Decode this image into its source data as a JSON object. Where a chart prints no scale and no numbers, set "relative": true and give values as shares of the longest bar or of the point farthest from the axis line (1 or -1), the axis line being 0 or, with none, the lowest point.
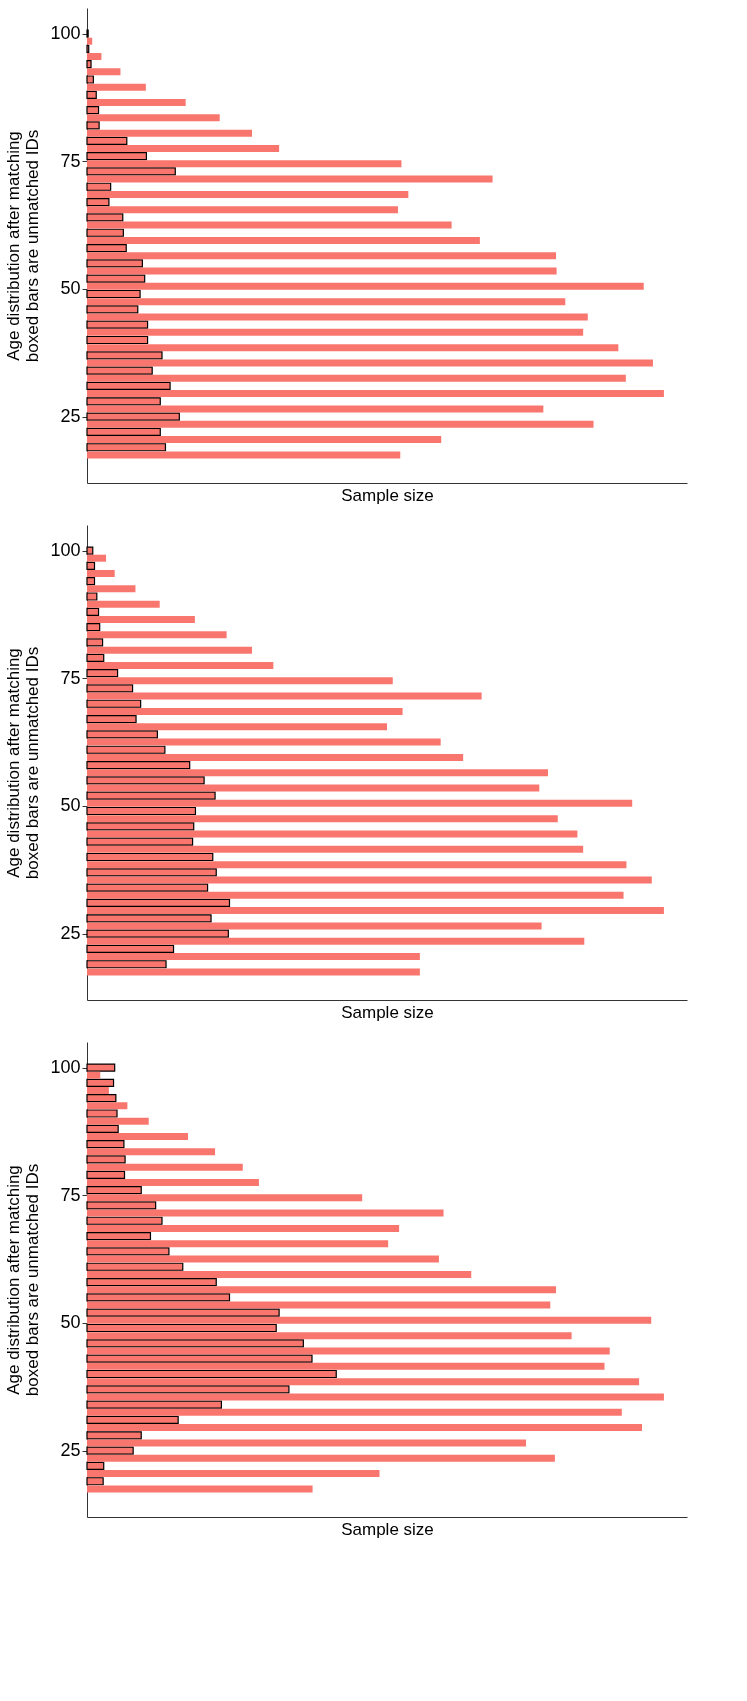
{
  "chart_data": [
    {
      "type": "bar",
      "orientation": "horizontal",
      "relative": true,
      "xlabel": "Sample size",
      "ylabel": "Age distribution after matching\nboxed bars are unmatched IDs",
      "ylim": [
        12,
        105
      ],
      "yticks": [
        25,
        50,
        75,
        100
      ],
      "grid": false,
      "series": [
        {
          "color": "#f8766d",
          "x": [
            100,
            97,
            94,
            91,
            88,
            85,
            82,
            79,
            76,
            73,
            70,
            67,
            64,
            61,
            58,
            55,
            52,
            49,
            46,
            43,
            40,
            37,
            34,
            31,
            28,
            25,
            22,
            19
          ],
          "values": [
            0.002,
            0.003,
            0.007,
            0.011,
            0.016,
            0.02,
            0.021,
            0.069,
            0.103,
            0.153,
            0.041,
            0.038,
            0.062,
            0.063,
            0.068,
            0.096,
            0.1,
            0.092,
            0.088,
            0.105,
            0.105,
            0.13,
            0.113,
            0.144,
            0.127,
            0.16,
            0.127,
            0.136
          ]
        },
        {
          "color": "#f8766d",
          "x": [
            98.5,
            95.5,
            92.5,
            89.5,
            86.5,
            83.5,
            80.5,
            77.5,
            74.5,
            71.5,
            68.5,
            65.5,
            62.5,
            59.5,
            56.5,
            53.5,
            50.5,
            47.5,
            44.5,
            41.5,
            38.5,
            35.5,
            32.5,
            29.5,
            26.5,
            23.5,
            20.5,
            17.5
          ],
          "values": [
            0.009,
            0.025,
            0.058,
            0.102,
            0.171,
            0.23,
            0.286,
            0.333,
            0.545,
            0.703,
            0.557,
            0.539,
            0.632,
            0.681,
            0.813,
            0.814,
            0.965,
            0.829,
            0.868,
            0.86,
            0.921,
            0.981,
            0.934,
            1,
            0.791,
            0.878,
            0.614,
            0.543
          ]
        }
      ]
    },
    {
      "type": "bar",
      "orientation": "horizontal",
      "relative": true,
      "xlabel": "Sample size",
      "ylabel": "Age distribution after matching\nboxed bars are unmatched IDs",
      "ylim": [
        12,
        105
      ],
      "yticks": [
        25,
        50,
        75,
        100
      ],
      "grid": false,
      "series": [
        {
          "color": "#f8766d",
          "x": [
            100,
            97,
            94,
            91,
            88,
            85,
            82,
            79,
            76,
            73,
            70,
            67,
            64,
            61,
            58,
            55,
            52,
            49,
            46,
            43,
            40,
            37,
            34,
            31,
            28,
            25,
            22,
            19
          ],
          "values": [
            0.01,
            0.013,
            0.013,
            0.017,
            0.02,
            0.022,
            0.027,
            0.029,
            0.053,
            0.079,
            0.093,
            0.085,
            0.122,
            0.135,
            0.178,
            0.203,
            0.222,
            0.188,
            0.185,
            0.183,
            0.218,
            0.224,
            0.209,
            0.247,
            0.215,
            0.245,
            0.15,
            0.137
          ]
        },
        {
          "color": "#f8766d",
          "x": [
            98.5,
            95.5,
            92.5,
            89.5,
            86.5,
            83.5,
            80.5,
            77.5,
            74.5,
            71.5,
            68.5,
            65.5,
            62.5,
            59.5,
            56.5,
            53.5,
            50.5,
            47.5,
            44.5,
            41.5,
            38.5,
            35.5,
            32.5,
            29.5,
            26.5,
            23.5,
            20.5,
            17.5
          ],
          "values": [
            0.033,
            0.048,
            0.084,
            0.126,
            0.187,
            0.242,
            0.286,
            0.323,
            0.53,
            0.684,
            0.547,
            0.52,
            0.613,
            0.652,
            0.799,
            0.784,
            0.945,
            0.816,
            0.85,
            0.86,
            0.935,
            0.979,
            0.93,
            1,
            0.788,
            0.862,
            0.577,
            0.577
          ]
        }
      ]
    },
    {
      "type": "bar",
      "orientation": "horizontal",
      "relative": true,
      "xlabel": "Sample size",
      "ylabel": "Age distribution after matching\nboxed bars are unmatched IDs",
      "ylim": [
        12,
        105
      ],
      "yticks": [
        25,
        50,
        75,
        100
      ],
      "grid": false,
      "series": [
        {
          "color": "#f8766d",
          "x": [
            100,
            97,
            94,
            91,
            88,
            85,
            82,
            79,
            76,
            73,
            70,
            67,
            64,
            61,
            58,
            55,
            52,
            49,
            46,
            43,
            40,
            37,
            34,
            31,
            28,
            25,
            22,
            19
          ],
          "values": [
            0.048,
            0.046,
            0.05,
            0.052,
            0.054,
            0.064,
            0.066,
            0.065,
            0.094,
            0.119,
            0.13,
            0.11,
            0.142,
            0.166,
            0.224,
            0.247,
            0.333,
            0.328,
            0.375,
            0.39,
            0.432,
            0.35,
            0.233,
            0.158,
            0.094,
            0.08,
            0.029,
            0.028
          ]
        },
        {
          "color": "#f8766d",
          "x": [
            98.5,
            95.5,
            92.5,
            89.5,
            86.5,
            83.5,
            80.5,
            77.5,
            74.5,
            71.5,
            68.5,
            65.5,
            62.5,
            59.5,
            56.5,
            53.5,
            50.5,
            47.5,
            44.5,
            41.5,
            38.5,
            35.5,
            32.5,
            29.5,
            26.5,
            23.5,
            20.5,
            17.5
          ],
          "values": [
            0.023,
            0.038,
            0.07,
            0.107,
            0.175,
            0.222,
            0.27,
            0.298,
            0.477,
            0.618,
            0.541,
            0.522,
            0.61,
            0.666,
            0.813,
            0.803,
            0.978,
            0.84,
            0.906,
            0.897,
            0.957,
            1,
            0.927,
            0.962,
            0.761,
            0.811,
            0.507,
            0.391
          ]
        }
      ]
    }
  ]
}
